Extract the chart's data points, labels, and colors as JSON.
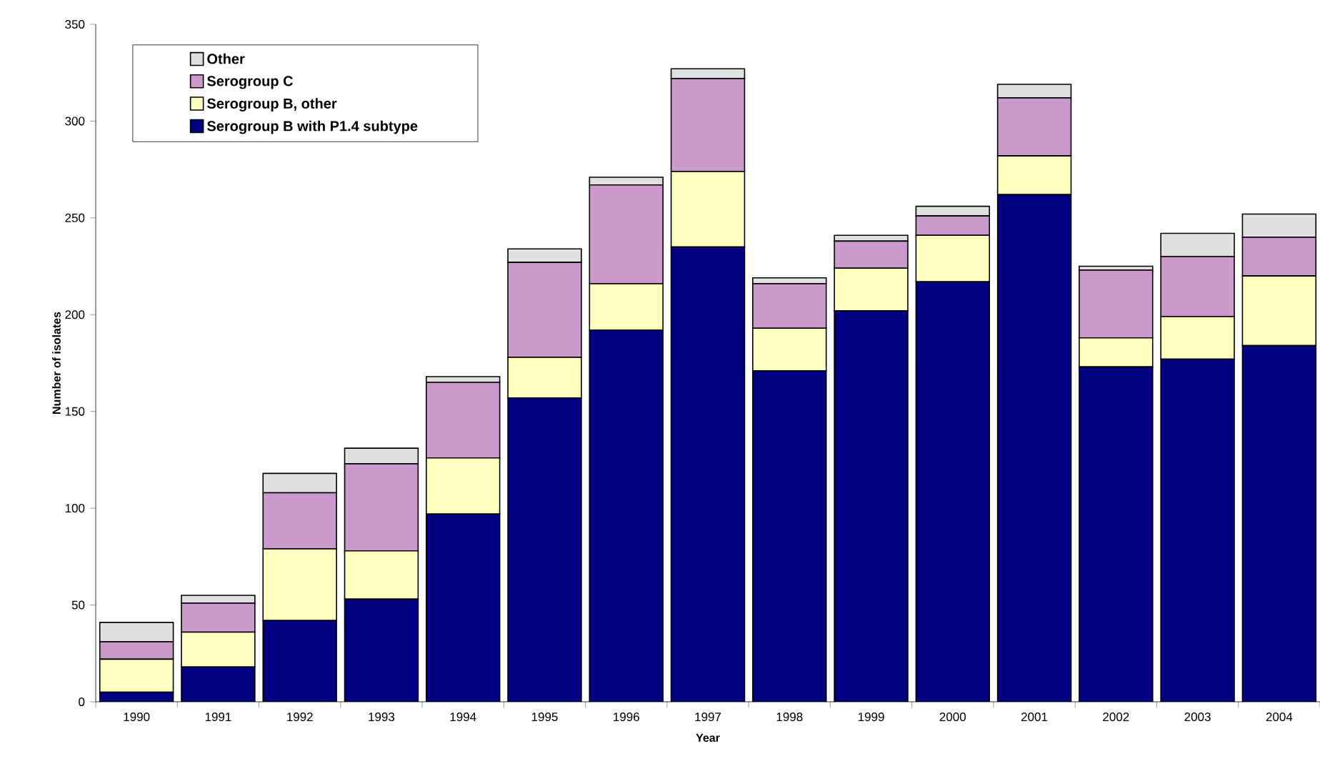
{
  "chart_data": {
    "type": "bar",
    "stacked": true,
    "xlabel": "Year",
    "ylabel": "Number of isolates",
    "categories": [
      "1990",
      "1991",
      "1992",
      "1993",
      "1994",
      "1995",
      "1996",
      "1997",
      "1998",
      "1999",
      "2000",
      "2001",
      "2002",
      "2003",
      "2004"
    ],
    "series": [
      {
        "name": "Serogroup B with P1.4 subtype",
        "color": "#000080",
        "values": [
          5,
          18,
          42,
          53,
          97,
          157,
          192,
          235,
          171,
          202,
          217,
          262,
          173,
          177,
          184
        ]
      },
      {
        "name": "Serogroup B, other",
        "color": "#ffffc0",
        "values": [
          17,
          18,
          37,
          25,
          29,
          21,
          24,
          39,
          22,
          22,
          24,
          20,
          15,
          22,
          36
        ]
      },
      {
        "name": "Serogroup C",
        "color": "#cc99cc",
        "values": [
          9,
          15,
          29,
          45,
          39,
          49,
          51,
          48,
          23,
          14,
          10,
          30,
          35,
          31,
          20
        ]
      },
      {
        "name": "Other",
        "color": "#e0e0e0",
        "values": [
          10,
          4,
          10,
          8,
          3,
          7,
          4,
          5,
          3,
          3,
          5,
          7,
          2,
          12,
          12
        ]
      }
    ],
    "ylim": [
      0,
      350
    ],
    "yticks": [
      0,
      50,
      100,
      150,
      200,
      250,
      300,
      350
    ],
    "grid": false,
    "legend": "top left"
  }
}
